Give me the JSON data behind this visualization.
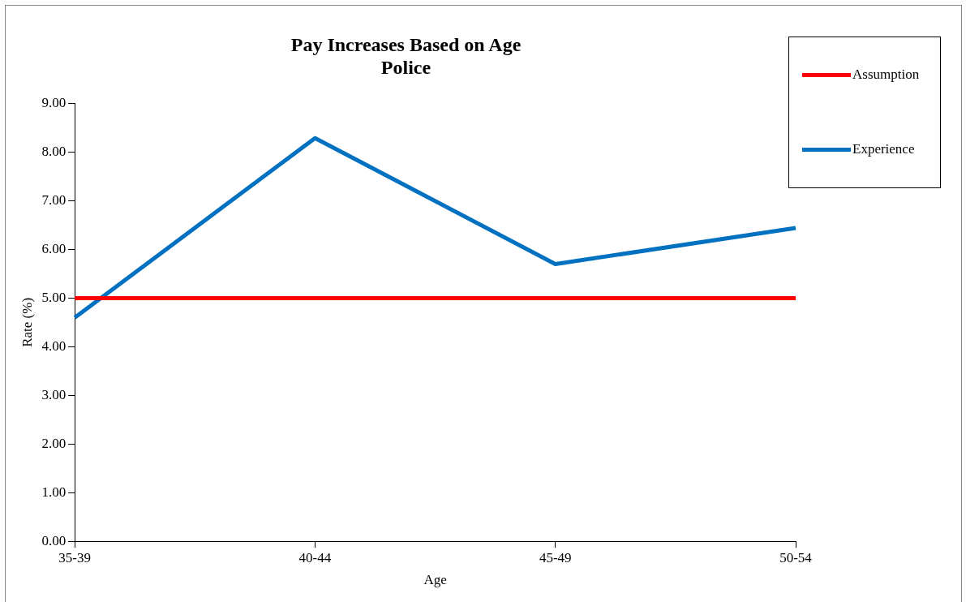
{
  "chart_data": {
    "type": "line",
    "title": "Pay Increases Based on Age",
    "subtitle": "Police",
    "xlabel": "Age",
    "ylabel": "Rate (%)",
    "categories": [
      "35-39",
      "40-44",
      "45-49",
      "50-54"
    ],
    "series": [
      {
        "name": "Assumption",
        "color": "#ff0000",
        "values": [
          5.0,
          5.0,
          5.0,
          5.0
        ]
      },
      {
        "name": "Experience",
        "color": "#0070c0",
        "values": [
          4.6,
          8.29,
          5.7,
          6.44
        ]
      }
    ],
    "ylim": [
      0,
      9
    ],
    "yticks": [
      {
        "value": 0,
        "label": "0.00"
      },
      {
        "value": 1,
        "label": "1.00"
      },
      {
        "value": 2,
        "label": "2.00"
      },
      {
        "value": 3,
        "label": "3.00"
      },
      {
        "value": 4,
        "label": "4.00"
      },
      {
        "value": 5,
        "label": "5.00"
      },
      {
        "value": 6,
        "label": "6.00"
      },
      {
        "value": 7,
        "label": "7.00"
      },
      {
        "value": 8,
        "label": "8.00"
      },
      {
        "value": 9,
        "label": "9.00"
      }
    ],
    "grid": false,
    "legend": "top right",
    "marker": "none",
    "line_style": "solid"
  }
}
